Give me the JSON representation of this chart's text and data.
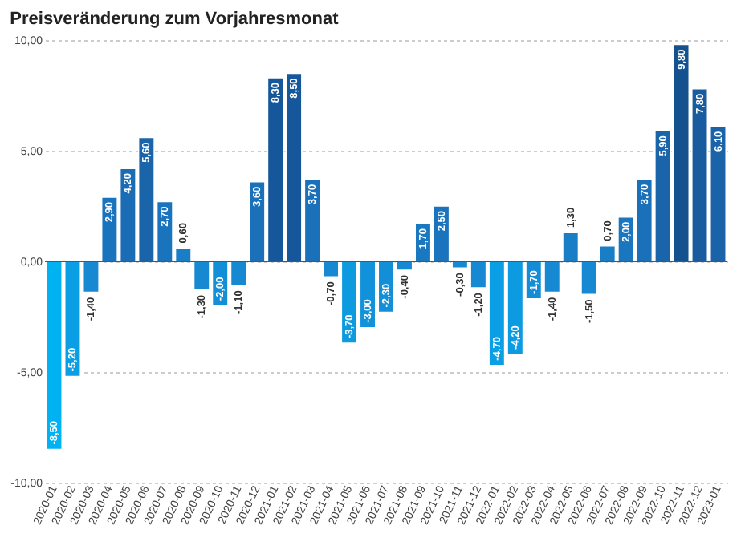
{
  "chart_data": {
    "type": "bar",
    "title": "Preisveränderung zum Vorjahresmonat",
    "categories": [
      "2020-01",
      "2020-02",
      "2020-03",
      "2020-04",
      "2020-05",
      "2020-06",
      "2020-07",
      "2020-08",
      "2020-09",
      "2020-10",
      "2020-11",
      "2020-12",
      "2021-01",
      "2021-02",
      "2021-03",
      "2021-04",
      "2021-05",
      "2021-06",
      "2021-07",
      "2021-08",
      "2021-09",
      "2021-10",
      "2021-11",
      "2021-12",
      "2022-01",
      "2022-02",
      "2022-03",
      "2022-04",
      "2022-05",
      "2022-06",
      "2022-07",
      "2022-08",
      "2022-09",
      "2022-10",
      "2022-11",
      "2022-12",
      "2023-01"
    ],
    "values": [
      -8.5,
      -5.2,
      -1.4,
      2.9,
      4.2,
      5.6,
      2.7,
      0.6,
      -1.3,
      -2.0,
      -1.1,
      3.6,
      8.3,
      8.5,
      3.7,
      -0.7,
      -3.7,
      -3.0,
      -2.3,
      -0.4,
      1.7,
      2.5,
      -0.3,
      -1.2,
      -4.7,
      -4.2,
      -1.7,
      -1.4,
      1.3,
      -1.5,
      0.7,
      2.0,
      3.7,
      5.9,
      9.8,
      7.8,
      6.1
    ],
    "value_labels": [
      "-8,50",
      "-5,20",
      "-1,40",
      "2,90",
      "4,20",
      "5,60",
      "2,70",
      "0,60",
      "-1,30",
      "-2,00",
      "-1,10",
      "3,60",
      "8,30",
      "8,50",
      "3,70",
      "-0,70",
      "-3,70",
      "-3,00",
      "-2,30",
      "-0,40",
      "1,70",
      "2,50",
      "-0,30",
      "-1,20",
      "-4,70",
      "-4,20",
      "-1,70",
      "-1,40",
      "1,30",
      "-1,50",
      "0,70",
      "2,00",
      "3,70",
      "5,90",
      "9,80",
      "7,80",
      "6,10"
    ],
    "colors": [
      "#00b2f2",
      "#0a9ee4",
      "#1789d3",
      "#1a74bd",
      "#1a6db5",
      "#1a64aa",
      "#1a74bd",
      "#1a7ec6",
      "#1789d3",
      "#138fd8",
      "#1789d3",
      "#1a70b9",
      "#16579b",
      "#16579b",
      "#1a70b9",
      "#1789d3",
      "#0e9ade",
      "#1192da",
      "#138fd8",
      "#1789d3",
      "#1a78c0",
      "#1a74bd",
      "#1789d3",
      "#1789d3",
      "#0a9ee4",
      "#0c9be1",
      "#148dd6",
      "#1789d3",
      "#1a7ec6",
      "#1789d3",
      "#1a7ec6",
      "#1a76bf",
      "#1a70b9",
      "#1a64aa",
      "#14528f",
      "#185c9f",
      "#1a63a8"
    ],
    "ylim": [
      -10,
      10
    ],
    "yticks": [
      {
        "value": -10,
        "label": "-10,00"
      },
      {
        "value": -5,
        "label": "-5,00"
      },
      {
        "value": 0,
        "label": "0,00"
      },
      {
        "value": 5,
        "label": "5,00"
      },
      {
        "value": 10,
        "label": "10,00"
      }
    ],
    "grid": "y",
    "ref_lines": [
      {
        "axis": "y",
        "value": 0,
        "color": "#555555"
      }
    ]
  }
}
